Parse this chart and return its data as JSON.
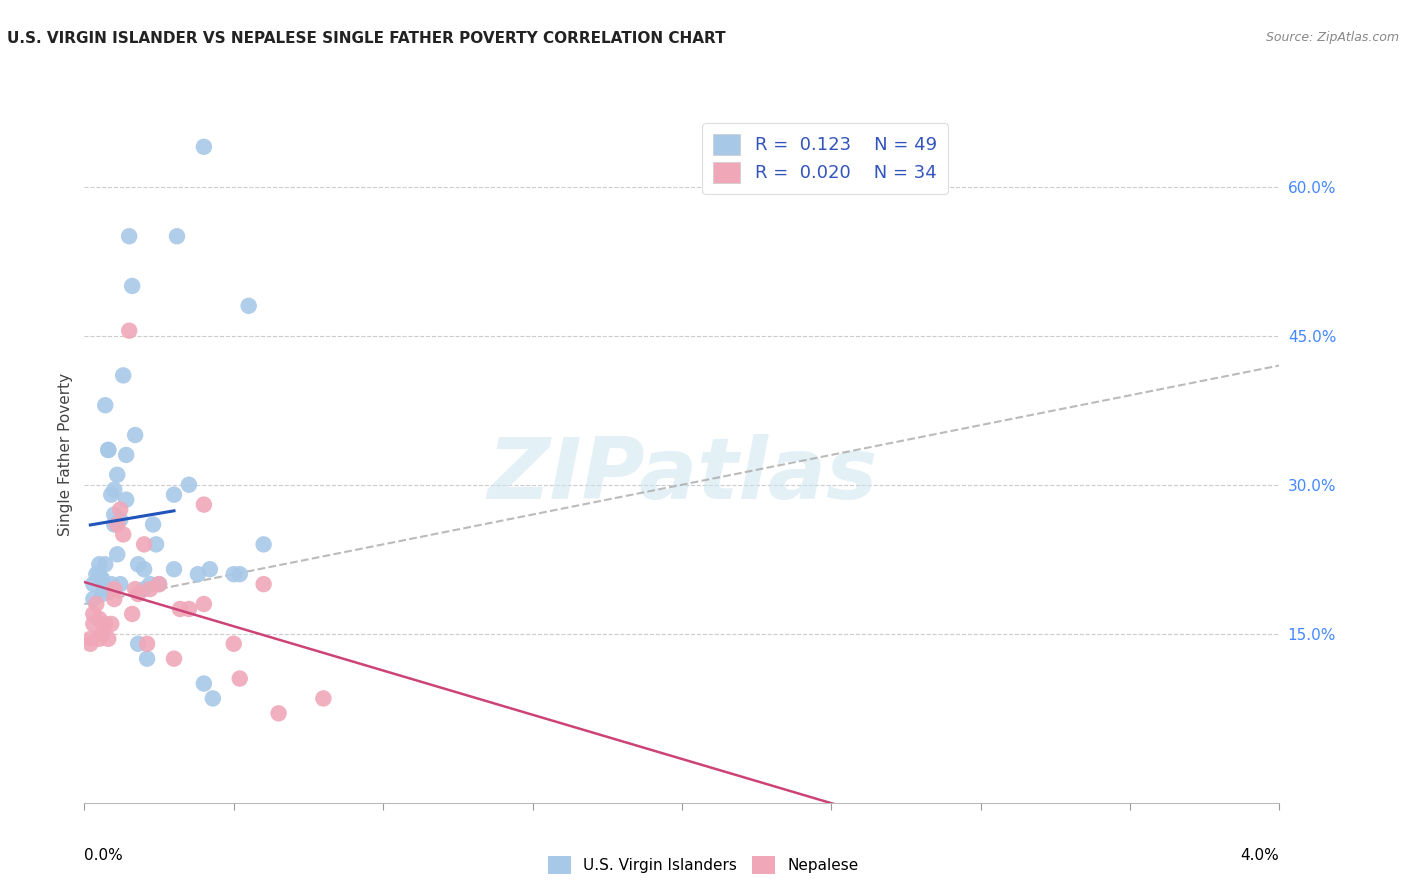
{
  "title": "U.S. VIRGIN ISLANDER VS NEPALESE SINGLE FATHER POVERTY CORRELATION CHART",
  "source": "Source: ZipAtlas.com",
  "ylabel": "Single Father Poverty",
  "legend_label1": "U.S. Virgin Islanders",
  "legend_label2": "Nepalese",
  "R1": "0.123",
  "N1": "49",
  "R2": "0.020",
  "N2": "34",
  "color1": "#a8c8e8",
  "color2": "#f0a8b8",
  "trendline1_color": "#2255bb",
  "trendline2_color": "#cc4477",
  "diagonal_color": "#aaaaaa",
  "watermark": "ZIPatlas",
  "xlim": [
    0.0,
    0.04
  ],
  "ylim": [
    -0.02,
    0.68
  ],
  "right_yticks": [
    0.15,
    0.3,
    0.45,
    0.6
  ],
  "right_yticklabels": [
    "15.0%",
    "30.0%",
    "45.0%",
    "60.0%"
  ],
  "blue_x": [
    0.0003,
    0.0003,
    0.0004,
    0.0005,
    0.0005,
    0.0006,
    0.0006,
    0.0007,
    0.0007,
    0.0007,
    0.0008,
    0.0008,
    0.0009,
    0.0009,
    0.001,
    0.001,
    0.001,
    0.0011,
    0.0011,
    0.0012,
    0.0012,
    0.0013,
    0.0014,
    0.0014,
    0.0015,
    0.0016,
    0.0017,
    0.0018,
    0.0018,
    0.002,
    0.002,
    0.0021,
    0.0022,
    0.0023,
    0.0024,
    0.0025,
    0.003,
    0.003,
    0.0031,
    0.0035,
    0.0038,
    0.004,
    0.004,
    0.0042,
    0.0043,
    0.005,
    0.0052,
    0.0055,
    0.006
  ],
  "blue_y": [
    0.2,
    0.185,
    0.21,
    0.21,
    0.22,
    0.205,
    0.19,
    0.38,
    0.22,
    0.195,
    0.335,
    0.335,
    0.29,
    0.2,
    0.26,
    0.27,
    0.295,
    0.31,
    0.23,
    0.2,
    0.265,
    0.41,
    0.33,
    0.285,
    0.55,
    0.5,
    0.35,
    0.14,
    0.22,
    0.195,
    0.215,
    0.125,
    0.2,
    0.26,
    0.24,
    0.2,
    0.29,
    0.215,
    0.55,
    0.3,
    0.21,
    0.64,
    0.1,
    0.215,
    0.085,
    0.21,
    0.21,
    0.48,
    0.24
  ],
  "pink_x": [
    0.0002,
    0.0002,
    0.0003,
    0.0003,
    0.0004,
    0.0005,
    0.0005,
    0.0006,
    0.0007,
    0.0008,
    0.0009,
    0.001,
    0.001,
    0.0011,
    0.0012,
    0.0013,
    0.0015,
    0.0016,
    0.0017,
    0.0018,
    0.002,
    0.0021,
    0.0022,
    0.0025,
    0.003,
    0.0032,
    0.0035,
    0.004,
    0.004,
    0.005,
    0.0052,
    0.006,
    0.0065,
    0.008
  ],
  "pink_y": [
    0.145,
    0.14,
    0.16,
    0.17,
    0.18,
    0.165,
    0.145,
    0.15,
    0.16,
    0.145,
    0.16,
    0.195,
    0.185,
    0.26,
    0.275,
    0.25,
    0.455,
    0.17,
    0.195,
    0.19,
    0.24,
    0.14,
    0.195,
    0.2,
    0.125,
    0.175,
    0.175,
    0.28,
    0.18,
    0.14,
    0.105,
    0.2,
    0.07,
    0.085
  ]
}
